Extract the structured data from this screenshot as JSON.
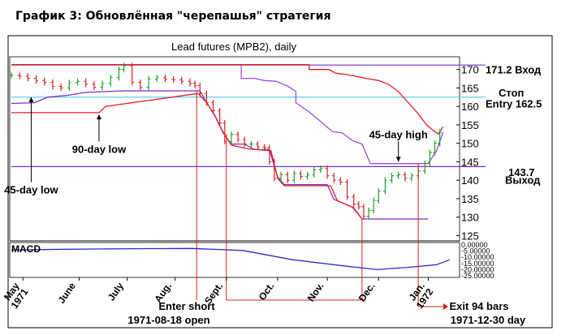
{
  "caption": "График 3: Обновлённая \"черепашья\" стратегия",
  "chart_data": {
    "type": "line",
    "title": "Lead futures (MPB2), daily",
    "y_axis": {
      "ylim": [
        124,
        173
      ],
      "ticks": [
        125,
        130,
        135,
        140,
        145,
        150,
        155,
        160,
        165,
        170
      ]
    },
    "x_axis": {
      "range": [
        "1971-04-28",
        "1972-01-22"
      ],
      "month_labels": [
        {
          "label": "May\n1971",
          "date": "1971-05-05"
        },
        {
          "label": "June",
          "date": "1971-06-08"
        },
        {
          "label": "July",
          "date": "1971-07-07"
        },
        {
          "label": "Aug.",
          "date": "1971-08-05"
        },
        {
          "label": "Sept.",
          "date": "1971-09-05"
        },
        {
          "label": "Oct.",
          "date": "1971-10-06"
        },
        {
          "label": "Nov.",
          "date": "1971-11-05"
        },
        {
          "label": "Dec.",
          "date": "1971-12-06"
        },
        {
          "label": "Jan.\n1972",
          "date": "1972-01-05"
        }
      ]
    },
    "price_bars": [
      [
        "1971-04-28",
        168.4
      ],
      [
        "1971-05-03",
        168.2
      ],
      [
        "1971-05-08",
        167.6
      ],
      [
        "1971-05-13",
        167.0
      ],
      [
        "1971-05-18",
        166.5
      ],
      [
        "1971-05-23",
        165.4
      ],
      [
        "1971-05-28",
        165.0
      ],
      [
        "1971-06-02",
        166.4
      ],
      [
        "1971-06-07",
        166.8
      ],
      [
        "1971-06-12",
        166.0
      ],
      [
        "1971-06-17",
        165.2
      ],
      [
        "1971-06-22",
        166.2
      ],
      [
        "1971-06-27",
        167.8
      ],
      [
        "1971-07-02",
        170.0
      ],
      [
        "1971-07-05",
        171.0
      ],
      [
        "1971-07-10",
        166.5
      ],
      [
        "1971-07-15",
        165.2
      ],
      [
        "1971-07-20",
        167.4
      ],
      [
        "1971-07-25",
        167.8
      ],
      [
        "1971-07-30",
        167.4
      ],
      [
        "1971-08-04",
        167.2
      ],
      [
        "1971-08-09",
        166.8
      ],
      [
        "1971-08-14",
        166.2
      ],
      [
        "1971-08-17",
        165.6
      ],
      [
        "1971-08-20",
        163.5
      ],
      [
        "1971-08-24",
        161.0
      ],
      [
        "1971-08-28",
        158.8
      ],
      [
        "1971-09-01",
        155.5
      ],
      [
        "1971-09-04",
        150.5
      ],
      [
        "1971-09-08",
        152.4
      ],
      [
        "1971-09-12",
        151.0
      ],
      [
        "1971-09-16",
        149.8
      ],
      [
        "1971-09-20",
        149.8
      ],
      [
        "1971-09-24",
        149.0
      ],
      [
        "1971-09-28",
        148.8
      ],
      [
        "1971-10-01",
        145.0
      ],
      [
        "1971-10-04",
        140.5
      ],
      [
        "1971-10-08",
        141.5
      ],
      [
        "1971-10-12",
        140.0
      ],
      [
        "1971-10-16",
        141.8
      ],
      [
        "1971-10-20",
        141.0
      ],
      [
        "1971-10-24",
        141.5
      ],
      [
        "1971-10-28",
        142.8
      ],
      [
        "1971-11-01",
        143.2
      ],
      [
        "1971-11-05",
        141.2
      ],
      [
        "1971-11-09",
        140.0
      ],
      [
        "1971-11-13",
        139.5
      ],
      [
        "1971-11-17",
        135.5
      ],
      [
        "1971-11-21",
        133.5
      ],
      [
        "1971-11-24",
        132.8
      ],
      [
        "1971-11-27",
        130.2
      ],
      [
        "1971-11-30",
        131.8
      ],
      [
        "1971-12-03",
        134.5
      ],
      [
        "1971-12-06",
        137.0
      ],
      [
        "1971-12-10",
        140.0
      ],
      [
        "1971-12-14",
        141.2
      ],
      [
        "1971-12-18",
        141.5
      ],
      [
        "1971-12-22",
        140.5
      ],
      [
        "1971-12-26",
        141.2
      ],
      [
        "1971-12-30",
        142.5
      ],
      [
        "1972-01-03",
        144.5
      ],
      [
        "1972-01-06",
        147.5
      ],
      [
        "1972-01-09",
        150.0
      ],
      [
        "1972-01-12",
        153.0
      ]
    ],
    "series": [
      {
        "name": "45-day high",
        "color": "#9b4fd9",
        "points": [
          [
            "1971-04-28",
            171.3
          ],
          [
            "1971-09-14",
            171.3
          ],
          [
            "1971-09-14",
            167.6
          ],
          [
            "1971-09-22",
            167.6
          ],
          [
            "1971-09-28",
            167.0
          ],
          [
            "1971-10-05",
            166.8
          ],
          [
            "1971-10-12",
            165.5
          ],
          [
            "1971-10-17",
            164.0
          ],
          [
            "1971-10-17",
            161.0
          ],
          [
            "1971-10-25",
            158.5
          ],
          [
            "1971-11-02",
            155.5
          ],
          [
            "1971-11-08",
            153.2
          ],
          [
            "1971-11-14",
            152.8
          ],
          [
            "1971-11-20",
            150.8
          ],
          [
            "1971-11-26",
            149.8
          ],
          [
            "1971-12-01",
            144.5
          ],
          [
            "1971-12-30",
            144.5
          ],
          [
            "1972-01-05",
            144.5
          ],
          [
            "1972-01-10",
            148.0
          ],
          [
            "1972-01-14",
            153.0
          ]
        ]
      },
      {
        "name": "",
        "color": "#e01f28",
        "points": [
          [
            "1971-04-28",
            171.3
          ],
          [
            "1971-10-25",
            171.3
          ],
          [
            "1971-10-25",
            170.0
          ],
          [
            "1971-11-06",
            170.0
          ],
          [
            "1971-11-10",
            169.0
          ],
          [
            "1971-11-17",
            168.6
          ],
          [
            "1971-11-24",
            168.0
          ],
          [
            "1971-12-01",
            167.4
          ],
          [
            "1971-12-06",
            167.0
          ],
          [
            "1971-12-12",
            166.0
          ],
          [
            "1971-12-18",
            164.0
          ],
          [
            "1971-12-24",
            161.0
          ],
          [
            "1971-12-30",
            158.0
          ],
          [
            "1972-01-04",
            155.0
          ],
          [
            "1972-01-08",
            153.5
          ],
          [
            "1972-01-11",
            152.5
          ],
          [
            "1972-01-14",
            154.5
          ]
        ]
      },
      {
        "name": "45-day low",
        "color": "#7a2ec7",
        "points": [
          [
            "1971-04-28",
            160.8
          ],
          [
            "1971-05-12",
            161.0
          ],
          [
            "1971-05-20",
            162.5
          ],
          [
            "1971-06-01",
            163.0
          ],
          [
            "1971-06-12",
            163.8
          ],
          [
            "1971-07-05",
            164.2
          ],
          [
            "1971-08-20",
            164.2
          ],
          [
            "1971-08-24",
            161.0
          ],
          [
            "1971-08-29",
            157.5
          ],
          [
            "1971-09-03",
            152.8
          ],
          [
            "1971-09-08",
            149.8
          ],
          [
            "1971-09-16",
            149.8
          ],
          [
            "1971-09-22",
            148.3
          ],
          [
            "1971-10-01",
            148.3
          ],
          [
            "1971-10-06",
            140.8
          ],
          [
            "1971-10-10",
            138.8
          ],
          [
            "1971-11-05",
            138.8
          ],
          [
            "1971-11-09",
            134.8
          ],
          [
            "1971-11-20",
            132.8
          ],
          [
            "1971-11-26",
            129.5
          ],
          [
            "1972-01-05",
            129.5
          ]
        ]
      },
      {
        "name": "90-day low",
        "color": "#e01f28",
        "points": [
          [
            "1971-04-28",
            158.3
          ],
          [
            "1971-06-20",
            158.3
          ],
          [
            "1971-06-24",
            160.0
          ],
          [
            "1971-08-19",
            163.5
          ],
          [
            "1971-08-24",
            161.0
          ],
          [
            "1971-08-29",
            157.5
          ],
          [
            "1971-09-03",
            153.0
          ],
          [
            "1971-09-08",
            149.5
          ],
          [
            "1971-09-18",
            148.5
          ],
          [
            "1971-10-02",
            148.0
          ],
          [
            "1971-10-06",
            140.5
          ],
          [
            "1971-10-10",
            138.5
          ],
          [
            "1971-11-07",
            138.5
          ],
          [
            "1971-11-11",
            134.5
          ],
          [
            "1971-11-21",
            132.5
          ],
          [
            "1971-11-26",
            129.5
          ]
        ]
      }
    ],
    "reference_lines": [
      {
        "y": 171.2,
        "color": "#7a2ec7"
      },
      {
        "y": 162.5,
        "color": "#5fd0e8"
      },
      {
        "y": 143.7,
        "color": "#7a2ec7"
      }
    ],
    "right_labels": [
      {
        "text": "171.2  Вход",
        "y": 170.0
      },
      {
        "text": "Стоп",
        "y": 163.8
      },
      {
        "text": "Entry 162.5",
        "y": 160.8
      },
      {
        "text": "143.7",
        "y": 142.2
      },
      {
        "text": "Выход",
        "y": 140.2
      }
    ],
    "annotations": [
      {
        "text": "45-day high",
        "date": "1971-12-18",
        "y": 152.5,
        "arrow_to": 145.0
      },
      {
        "text": "90-day low",
        "date": "1971-06-20",
        "y": 148.5,
        "arrow_to": 157.8
      },
      {
        "text": "45-day low",
        "date": "1971-05-10",
        "y": 137.5,
        "arrow_to": 162.5
      }
    ],
    "macd": {
      "label": "MACD",
      "ylim": [
        -25,
        0
      ],
      "ticks": [
        "0.00000",
        "-5.00000",
        "-10.00000",
        "-15.00000",
        "-20.00000",
        "-25.00000"
      ],
      "points": [
        [
          "1971-04-28",
          -4.0
        ],
        [
          "1971-06-01",
          -3.5
        ],
        [
          "1971-07-10",
          -3.0
        ],
        [
          "1971-08-15",
          -2.8
        ],
        [
          "1971-09-15",
          -4.5
        ],
        [
          "1971-10-15",
          -12.0
        ],
        [
          "1971-11-15",
          -17.0
        ],
        [
          "1971-12-05",
          -20.0
        ],
        [
          "1971-12-25",
          -18.0
        ],
        [
          "1972-01-10",
          -16.0
        ],
        [
          "1972-01-18",
          -12.0
        ]
      ]
    },
    "trade_annotations": {
      "enter_label": "Enter short",
      "enter_date_label": "1971-08-18 open",
      "exit_label": "Exit 94 bars",
      "exit_date_label": "1971-12-30 day"
    }
  }
}
